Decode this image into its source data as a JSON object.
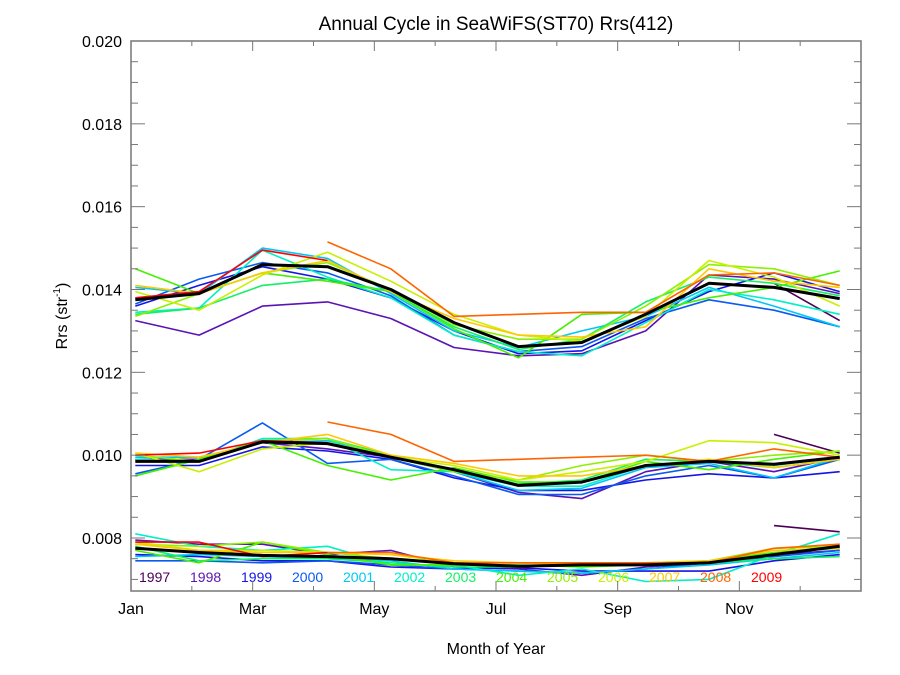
{
  "chart_data": {
    "type": "line",
    "title": "Annual Cycle in SeaWiFS(ST70) Rrs(412)",
    "xlabel": "Month of Year",
    "ylabel": "Rrs (str",
    "ylabel_superscript": "-1",
    "ylabel_suffix": ")",
    "xlim": [
      1,
      13
    ],
    "ylim": [
      0.00672,
      0.02
    ],
    "x_ticks": [
      {
        "value": 1,
        "label": "Jan"
      },
      {
        "value": 3,
        "label": "Mar"
      },
      {
        "value": 5,
        "label": "May"
      },
      {
        "value": 7,
        "label": "Jul"
      },
      {
        "value": 9,
        "label": "Sep"
      },
      {
        "value": 11,
        "label": "Nov"
      }
    ],
    "x_minor_ticks": [
      2,
      4,
      6,
      8,
      10,
      12
    ],
    "y_ticks": [
      {
        "value": 0.008,
        "label": "0.008"
      },
      {
        "value": 0.01,
        "label": "0.010"
      },
      {
        "value": 0.012,
        "label": "0.012"
      },
      {
        "value": 0.014,
        "label": "0.014"
      },
      {
        "value": 0.016,
        "label": "0.016"
      },
      {
        "value": 0.018,
        "label": "0.018"
      },
      {
        "value": 0.02,
        "label": "0.020"
      }
    ],
    "y_minor_step": 0.0005,
    "grid": false,
    "legend_position": "bottom-inside",
    "x": [
      1.07,
      2.12,
      3.16,
      4.23,
      5.27,
      6.31,
      7.37,
      8.41,
      9.46,
      10.5,
      11.57,
      12.65
    ],
    "legend": [
      {
        "name": "1997",
        "color": "#4b0055"
      },
      {
        "name": "1998",
        "color": "#5a14b4"
      },
      {
        "name": "1999",
        "color": "#1414e6"
      },
      {
        "name": "2000",
        "color": "#0a5af0"
      },
      {
        "name": "2001",
        "color": "#00c8f5"
      },
      {
        "name": "2002",
        "color": "#00f0c8"
      },
      {
        "name": "2003",
        "color": "#14f064"
      },
      {
        "name": "2004",
        "color": "#46f000"
      },
      {
        "name": "2005",
        "color": "#8cf000"
      },
      {
        "name": "2006",
        "color": "#c8f000"
      },
      {
        "name": "2007",
        "color": "#ffc800"
      },
      {
        "name": "2008",
        "color": "#ff6400"
      },
      {
        "name": "2009",
        "color": "#ff0000"
      }
    ],
    "mean_color": "#000000",
    "groups": [
      {
        "name": "upper",
        "mean": [
          0.01375,
          0.0139,
          0.0146,
          0.01455,
          0.014,
          0.0132,
          0.01262,
          0.01272,
          0.0134,
          0.01415,
          0.01405,
          0.01378
        ],
        "series": [
          {
            "name": "1997",
            "values": [
              null,
              null,
              null,
              null,
              null,
              null,
              null,
              null,
              null,
              null,
              0.01415,
              0.01325
            ]
          },
          {
            "name": "1998",
            "values": [
              0.01325,
              0.0129,
              0.0136,
              0.0137,
              0.0133,
              0.0126,
              0.0124,
              0.01245,
              0.013,
              0.01435,
              0.01425,
              0.0139
            ]
          },
          {
            "name": "1999",
            "values": [
              0.0136,
              0.0141,
              0.01455,
              0.01425,
              0.0138,
              0.013,
              0.01245,
              0.01252,
              0.01325,
              0.01395,
              0.0144,
              0.01395
            ]
          },
          {
            "name": "2000",
            "values": [
              0.01365,
              0.01425,
              0.01465,
              0.0144,
              0.01385,
              0.0129,
              0.0125,
              0.01262,
              0.0133,
              0.01375,
              0.0135,
              0.0131
            ]
          },
          {
            "name": "2001",
            "values": [
              0.01405,
              0.0139,
              0.015,
              0.01475,
              0.0139,
              0.013,
              0.0126,
              0.013,
              0.01335,
              0.01405,
              0.0136,
              0.0131
            ]
          },
          {
            "name": "2002",
            "values": [
              0.01345,
              0.01355,
              0.01495,
              0.0143,
              0.0138,
              0.0129,
              0.0125,
              0.0124,
              0.0132,
              0.014,
              0.01375,
              0.0134
            ]
          },
          {
            "name": "2003",
            "values": [
              0.0134,
              0.01355,
              0.0141,
              0.01425,
              0.01395,
              0.0131,
              0.01255,
              0.0128,
              0.0137,
              0.0143,
              0.01415,
              0.01385
            ]
          },
          {
            "name": "2004",
            "values": [
              0.0145,
              0.0139,
              0.0144,
              0.0142,
              0.01395,
              0.01305,
              0.01235,
              0.0134,
              0.01345,
              0.0138,
              0.01405,
              0.01445
            ]
          },
          {
            "name": "2005",
            "values": [
              0.01335,
              0.0139,
              0.0144,
              0.01465,
              0.014,
              0.01315,
              0.0128,
              0.0128,
              0.0136,
              0.0146,
              0.0145,
              0.0141
            ]
          },
          {
            "name": "2006",
            "values": [
              0.01395,
              0.0135,
              0.01435,
              0.0149,
              0.0142,
              0.0134,
              0.0129,
              0.01275,
              0.01335,
              0.0147,
              0.0143,
              0.0136
            ]
          },
          {
            "name": "2007",
            "values": [
              0.0141,
              0.0139,
              0.0144,
              0.0147,
              0.01395,
              0.0133,
              0.0129,
              0.01285,
              0.0131,
              0.0145,
              0.0142,
              0.01405
            ]
          },
          {
            "name": "2008",
            "values": [
              null,
              null,
              null,
              0.01515,
              0.0145,
              0.01335,
              0.0134,
              0.01345,
              0.01345,
              0.01435,
              0.0144,
              0.0141
            ]
          },
          {
            "name": "2009",
            "values": [
              0.0138,
              0.01395,
              0.01495,
              0.0147,
              null,
              null,
              null,
              null,
              null,
              null,
              null,
              null
            ]
          }
        ]
      },
      {
        "name": "middle",
        "mean": [
          0.00985,
          0.00985,
          0.01032,
          0.01028,
          0.00995,
          0.00965,
          0.00927,
          0.00935,
          0.00975,
          0.00985,
          0.00978,
          0.00995
        ],
        "series": [
          {
            "name": "1997",
            "values": [
              null,
              null,
              null,
              null,
              null,
              null,
              null,
              null,
              null,
              null,
              0.0105,
              0.01005
            ]
          },
          {
            "name": "1998",
            "values": [
              0.0099,
              0.0099,
              0.0103,
              0.01015,
              0.00995,
              0.0096,
              0.0091,
              0.00895,
              0.0096,
              0.00985,
              0.0096,
              0.00995
            ]
          },
          {
            "name": "1999",
            "values": [
              0.00975,
              0.00975,
              0.0102,
              0.0101,
              0.0099,
              0.00945,
              0.00915,
              0.00915,
              0.0094,
              0.00955,
              0.00945,
              0.0096
            ]
          },
          {
            "name": "2000",
            "values": [
              0.00955,
              0.0099,
              0.01078,
              0.0098,
              0.0099,
              0.0095,
              0.00905,
              0.00905,
              0.0095,
              0.00975,
              0.00945,
              0.0099
            ]
          },
          {
            "name": "2001",
            "values": [
              0.00995,
              0.00995,
              0.0103,
              0.01035,
              0.01,
              0.0096,
              0.00915,
              0.0092,
              0.0097,
              0.0098,
              0.00945,
              0.00995
            ]
          },
          {
            "name": "2002",
            "values": [
              0.0099,
              0.00985,
              0.0104,
              0.0104,
              0.00965,
              0.0096,
              0.00925,
              0.00925,
              0.00975,
              0.00985,
              0.00975,
              0.00995
            ]
          },
          {
            "name": "2003",
            "values": [
              0.0095,
              0.0099,
              0.01035,
              0.0104,
              0.01,
              0.00965,
              0.0093,
              0.0094,
              0.0099,
              0.00985,
              0.0097,
              0.0099
            ]
          },
          {
            "name": "2004",
            "values": [
              0.0095,
              0.0099,
              0.01035,
              0.00975,
              0.0094,
              0.0097,
              0.00935,
              0.00935,
              0.00985,
              0.00965,
              0.0099,
              0.0101
            ]
          },
          {
            "name": "2005",
            "values": [
              0.01,
              0.00985,
              0.01035,
              0.0104,
              0.00995,
              0.0096,
              0.0094,
              0.00975,
              0.01,
              0.00985,
              0.01,
              0.0101
            ]
          },
          {
            "name": "2006",
            "values": [
              0.01005,
              0.0096,
              0.01015,
              0.0103,
              0.00995,
              0.00975,
              0.0094,
              0.0096,
              0.00985,
              0.01035,
              0.0103,
              0.01
            ]
          },
          {
            "name": "2007",
            "values": [
              0.01005,
              0.00995,
              0.0103,
              0.0105,
              0.01,
              0.0098,
              0.0095,
              0.0095,
              0.00975,
              0.0099,
              0.0097,
              0.0099
            ]
          },
          {
            "name": "2008",
            "values": [
              null,
              null,
              null,
              0.0108,
              0.0105,
              0.00985,
              0.0099,
              0.00995,
              0.01,
              0.00985,
              0.01015,
              0.00995
            ]
          },
          {
            "name": "2009",
            "values": [
              0.01,
              0.01005,
              0.01035,
              0.0103,
              null,
              null,
              null,
              null,
              null,
              null,
              null,
              null
            ]
          }
        ]
      },
      {
        "name": "lower",
        "mean": [
          0.00775,
          0.00765,
          0.00758,
          0.00755,
          0.0075,
          0.00738,
          0.00732,
          0.00735,
          0.00735,
          0.0074,
          0.0076,
          0.0078
        ],
        "series": [
          {
            "name": "1997",
            "values": [
              null,
              null,
              null,
              null,
              null,
              null,
              null,
              null,
              null,
              null,
              0.0083,
              0.00815
            ]
          },
          {
            "name": "1998",
            "values": [
              0.00795,
              0.00785,
              0.00785,
              0.0076,
              0.0077,
              0.0073,
              0.00725,
              0.0071,
              0.0073,
              0.0074,
              0.0076,
              0.0077
            ]
          },
          {
            "name": "1999",
            "values": [
              0.0076,
              0.00755,
              0.00745,
              0.00745,
              0.0073,
              0.00725,
              0.00728,
              0.0072,
              0.0072,
              0.0072,
              0.00745,
              0.0076
            ]
          },
          {
            "name": "2000",
            "values": [
              0.00745,
              0.00745,
              0.0074,
              0.00745,
              0.00735,
              0.00725,
              0.0072,
              0.00715,
              0.00725,
              0.0074,
              0.00755,
              0.0077
            ]
          },
          {
            "name": "2001",
            "values": [
              0.00755,
              0.0076,
              0.00755,
              0.0075,
              0.00745,
              0.00725,
              0.0072,
              0.00715,
              0.00725,
              0.00735,
              0.0075,
              0.00765
            ]
          },
          {
            "name": "2002",
            "values": [
              0.0081,
              0.0078,
              0.0077,
              0.0078,
              0.00735,
              0.00735,
              0.0071,
              0.00725,
              0.00695,
              0.007,
              0.0076,
              0.0081
            ]
          },
          {
            "name": "2003",
            "values": [
              0.0078,
              0.00745,
              0.0075,
              0.0075,
              0.0074,
              0.0073,
              0.0073,
              0.00735,
              0.00735,
              0.0074,
              0.0075,
              0.00755
            ]
          },
          {
            "name": "2004",
            "values": [
              0.0077,
              0.0074,
              0.0079,
              0.0076,
              0.00735,
              0.00735,
              0.00735,
              0.0073,
              0.00735,
              0.00745,
              0.00765,
              0.00775
            ]
          },
          {
            "name": "2005",
            "values": [
              0.00785,
              0.0078,
              0.0079,
              0.00765,
              0.0075,
              0.0074,
              0.0074,
              0.0074,
              0.0074,
              0.00745,
              0.00775,
              0.0078
            ]
          },
          {
            "name": "2006",
            "values": [
              0.0079,
              0.0077,
              0.0077,
              0.00765,
              0.0076,
              0.0074,
              0.0074,
              0.00735,
              0.00735,
              0.0074,
              0.0076,
              0.00785
            ]
          },
          {
            "name": "2007",
            "values": [
              0.00785,
              0.0077,
              0.00765,
              0.00765,
              0.0076,
              0.00745,
              0.0074,
              0.0074,
              0.0074,
              0.00745,
              0.0077,
              0.00775
            ]
          },
          {
            "name": "2008",
            "values": [
              null,
              null,
              null,
              0.00765,
              0.00765,
              0.0074,
              0.0074,
              0.0074,
              0.0074,
              0.0074,
              0.00775,
              0.00785
            ]
          },
          {
            "name": "2009",
            "values": [
              0.0079,
              0.0079,
              0.00755,
              0.00765,
              null,
              null,
              null,
              null,
              null,
              null,
              null,
              null
            ]
          }
        ]
      }
    ]
  }
}
